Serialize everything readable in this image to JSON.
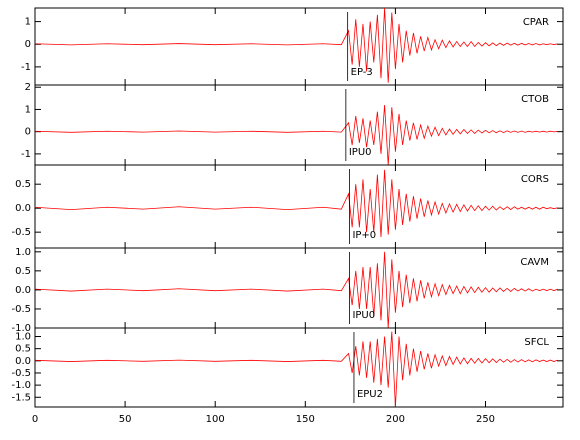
{
  "chart_data": [
    {
      "type": "line",
      "station": "CPAR",
      "pick": {
        "x": 173.5,
        "label": "EP-3"
      },
      "x": [
        0,
        20,
        40,
        60,
        80,
        100,
        120,
        140,
        160,
        170,
        174,
        176,
        178,
        180,
        182,
        184,
        186,
        188,
        190,
        192,
        194,
        196,
        198,
        200,
        202,
        204,
        206,
        208,
        210,
        212,
        214,
        216,
        218,
        220,
        222,
        224,
        226,
        228,
        230,
        232,
        234,
        236,
        238,
        240,
        242,
        244,
        246,
        248,
        250,
        252,
        254,
        256,
        258,
        260,
        262,
        264,
        266,
        268,
        270,
        272,
        274,
        276,
        278,
        280,
        282,
        284,
        286,
        288,
        290
      ],
      "series": [
        {
          "color": "#ff0000",
          "values": [
            0.02,
            -0.03,
            0.02,
            -0.02,
            0.03,
            -0.02,
            0.02,
            -0.03,
            0.02,
            -0.02,
            0.6,
            -0.9,
            1.1,
            -1.0,
            0.9,
            -1.2,
            1.0,
            -0.8,
            1.3,
            -1.5,
            1.6,
            -1.7,
            1.4,
            -1.1,
            0.9,
            -0.8,
            0.6,
            -0.5,
            0.5,
            -0.4,
            0.35,
            -0.3,
            0.3,
            -0.25,
            0.2,
            -0.2,
            0.18,
            -0.15,
            0.15,
            -0.12,
            0.12,
            -0.1,
            0.1,
            -0.1,
            0.12,
            -0.1,
            0.08,
            -0.08,
            0.07,
            -0.07,
            0.06,
            -0.06,
            0.05,
            -0.05,
            0.05,
            -0.04,
            0.04,
            -0.04,
            0.04,
            -0.03,
            0.03,
            -0.03,
            0.03,
            -0.03,
            0.02,
            -0.02,
            0.02,
            -0.02,
            0.02
          ]
        }
      ],
      "xlim": [
        0,
        293
      ],
      "xticks": [
        0,
        50,
        100,
        150,
        200,
        250
      ],
      "ylim": [
        -1.8,
        1.6
      ],
      "yticks": [
        -1,
        0,
        1
      ]
    },
    {
      "type": "line",
      "station": "CTOB",
      "pick": {
        "x": 172.5,
        "label": "IPU0"
      },
      "x": [
        0,
        20,
        40,
        60,
        80,
        100,
        120,
        140,
        160,
        170,
        174,
        176,
        178,
        180,
        182,
        184,
        186,
        188,
        190,
        192,
        194,
        196,
        198,
        200,
        202,
        204,
        206,
        208,
        210,
        212,
        214,
        216,
        218,
        220,
        222,
        224,
        226,
        228,
        230,
        232,
        234,
        236,
        238,
        240,
        242,
        244,
        246,
        248,
        250,
        252,
        254,
        256,
        258,
        260,
        262,
        264,
        266,
        268,
        270,
        272,
        274,
        276,
        278,
        280,
        282,
        284,
        286,
        288,
        290
      ],
      "series": [
        {
          "color": "#ff0000",
          "values": [
            0.02,
            -0.03,
            0.02,
            -0.02,
            0.03,
            -0.02,
            0.02,
            -0.03,
            0.02,
            -0.02,
            0.4,
            -0.6,
            0.7,
            -0.5,
            0.6,
            -0.7,
            0.5,
            -0.6,
            0.9,
            -1.0,
            1.2,
            -1.5,
            1.1,
            -0.9,
            0.8,
            -0.6,
            0.5,
            -0.4,
            0.4,
            -0.35,
            0.3,
            -0.3,
            0.25,
            -0.2,
            0.2,
            -0.18,
            0.15,
            -0.15,
            0.12,
            -0.12,
            0.1,
            -0.1,
            0.1,
            -0.08,
            0.08,
            -0.08,
            0.07,
            -0.06,
            0.06,
            -0.05,
            0.05,
            -0.05,
            0.04,
            -0.04,
            0.04,
            -0.03,
            0.03,
            -0.03,
            0.03,
            -0.03,
            0.02,
            -0.02,
            0.02,
            -0.02,
            0.02,
            -0.02,
            0.02,
            -0.01,
            0.01
          ]
        }
      ],
      "xlim": [
        0,
        293
      ],
      "xticks": [
        0,
        50,
        100,
        150,
        200,
        250
      ],
      "ylim": [
        -1.5,
        2.1
      ],
      "yticks": [
        -1,
        0,
        1,
        2
      ]
    },
    {
      "type": "line",
      "station": "CORS",
      "pick": {
        "x": 174.5,
        "label": "IP+0"
      },
      "x": [
        0,
        20,
        40,
        60,
        80,
        100,
        120,
        140,
        160,
        170,
        174,
        176,
        178,
        180,
        182,
        184,
        186,
        188,
        190,
        192,
        194,
        196,
        198,
        200,
        202,
        204,
        206,
        208,
        210,
        212,
        214,
        216,
        218,
        220,
        222,
        224,
        226,
        228,
        230,
        232,
        234,
        236,
        238,
        240,
        242,
        244,
        246,
        248,
        250,
        252,
        254,
        256,
        258,
        260,
        262,
        264,
        266,
        268,
        270,
        272,
        274,
        276,
        278,
        280,
        282,
        284,
        286,
        288,
        290
      ],
      "series": [
        {
          "color": "#ff0000",
          "values": [
            0.02,
            -0.03,
            0.02,
            -0.02,
            0.03,
            -0.02,
            0.02,
            -0.03,
            0.02,
            -0.02,
            0.3,
            -0.4,
            0.5,
            -0.4,
            0.6,
            -0.5,
            0.4,
            -0.5,
            0.7,
            -0.6,
            0.8,
            -0.55,
            0.6,
            -0.45,
            0.4,
            -0.35,
            0.3,
            -0.28,
            0.25,
            -0.22,
            0.2,
            -0.18,
            0.16,
            -0.14,
            0.13,
            -0.12,
            0.1,
            -0.1,
            0.09,
            -0.08,
            0.08,
            -0.07,
            0.07,
            -0.06,
            0.06,
            -0.05,
            0.05,
            -0.05,
            0.04,
            -0.04,
            0.04,
            -0.04,
            0.03,
            -0.03,
            0.03,
            -0.03,
            0.03,
            -0.02,
            0.02,
            -0.02,
            0.02,
            -0.02,
            0.02,
            -0.02,
            0.02,
            -0.01,
            0.01,
            -0.01,
            0.01
          ]
        }
      ],
      "xlim": [
        0,
        293
      ],
      "xticks": [
        0,
        50,
        100,
        150,
        200,
        250
      ],
      "ylim": [
        -0.83,
        0.9
      ],
      "yticks": [
        -0.5,
        {
          "value": 0,
          "label": "0.0"
        },
        0.5
      ]
    },
    {
      "type": "line",
      "station": "CAVM",
      "pick": {
        "x": 174.5,
        "label": "IPU0"
      },
      "x": [
        0,
        20,
        40,
        60,
        80,
        100,
        120,
        140,
        160,
        170,
        174,
        176,
        178,
        180,
        182,
        184,
        186,
        188,
        190,
        192,
        194,
        196,
        198,
        200,
        202,
        204,
        206,
        208,
        210,
        212,
        214,
        216,
        218,
        220,
        222,
        224,
        226,
        228,
        230,
        232,
        234,
        236,
        238,
        240,
        242,
        244,
        246,
        248,
        250,
        252,
        254,
        256,
        258,
        260,
        262,
        264,
        266,
        268,
        270,
        272,
        274,
        276,
        278,
        280,
        282,
        284,
        286,
        288,
        290
      ],
      "series": [
        {
          "color": "#ff0000",
          "values": [
            0.02,
            -0.03,
            0.02,
            -0.02,
            0.03,
            -0.02,
            0.02,
            -0.03,
            0.02,
            -0.02,
            0.3,
            -0.4,
            0.5,
            -0.5,
            0.6,
            -0.5,
            0.6,
            -0.7,
            0.7,
            -0.8,
            1.0,
            -1.0,
            0.8,
            -0.6,
            0.5,
            -0.45,
            0.4,
            -0.35,
            0.3,
            -0.3,
            0.25,
            -0.22,
            0.2,
            -0.18,
            0.16,
            -0.15,
            0.14,
            -0.12,
            0.12,
            -0.1,
            0.1,
            -0.1,
            0.09,
            -0.08,
            0.08,
            -0.07,
            0.07,
            -0.06,
            0.06,
            -0.06,
            0.05,
            -0.05,
            0.05,
            -0.04,
            0.04,
            -0.04,
            0.04,
            -0.03,
            0.03,
            -0.03,
            0.03,
            -0.03,
            0.02,
            -0.02,
            0.02,
            -0.02,
            0.02,
            -0.02,
            0.02
          ]
        }
      ],
      "xlim": [
        0,
        293
      ],
      "xticks": [
        0,
        50,
        100,
        150,
        200,
        250
      ],
      "ylim": [
        -1.0,
        1.1
      ],
      "yticks": [
        {
          "value": -1,
          "label": "-1.0"
        },
        -0.5,
        {
          "value": 0,
          "label": "0.0"
        },
        0.5,
        {
          "value": 1,
          "label": "1.0"
        }
      ]
    },
    {
      "type": "line",
      "station": "SFCL",
      "pick": {
        "x": 177,
        "label": "EPU2"
      },
      "x": [
        0,
        20,
        40,
        60,
        80,
        100,
        120,
        140,
        160,
        170,
        174,
        176,
        178,
        180,
        182,
        184,
        186,
        188,
        190,
        192,
        194,
        196,
        198,
        200,
        202,
        204,
        206,
        208,
        210,
        212,
        214,
        216,
        218,
        220,
        222,
        224,
        226,
        228,
        230,
        232,
        234,
        236,
        238,
        240,
        242,
        244,
        246,
        248,
        250,
        252,
        254,
        256,
        258,
        260,
        262,
        264,
        266,
        268,
        270,
        272,
        274,
        276,
        278,
        280,
        282,
        284,
        286,
        288,
        290
      ],
      "series": [
        {
          "color": "#ff0000",
          "values": [
            0.02,
            -0.03,
            0.02,
            -0.02,
            0.03,
            -0.02,
            0.02,
            -0.03,
            0.02,
            -0.02,
            0.3,
            -0.5,
            0.6,
            -0.6,
            0.8,
            -0.7,
            0.8,
            -0.9,
            0.9,
            -1.0,
            1.0,
            -1.1,
            1.2,
            -1.9,
            1.0,
            -0.8,
            0.7,
            -0.6,
            0.5,
            -0.45,
            0.4,
            -0.35,
            0.3,
            -0.3,
            0.25,
            -0.22,
            0.2,
            -0.2,
            0.18,
            -0.15,
            0.15,
            -0.13,
            0.12,
            -0.12,
            0.1,
            -0.1,
            0.1,
            -0.09,
            0.09,
            -0.08,
            0.08,
            -0.07,
            0.07,
            -0.06,
            0.06,
            -0.06,
            0.05,
            -0.05,
            0.05,
            -0.04,
            0.04,
            -0.04,
            0.04,
            -0.03,
            0.03,
            -0.03,
            0.03,
            -0.03,
            0.03
          ]
        }
      ],
      "xlim": [
        0,
        293
      ],
      "xticks": [
        0,
        50,
        100,
        150,
        200,
        250
      ],
      "ylim": [
        -1.9,
        1.35
      ],
      "yticks": [
        -1.5,
        {
          "value": -1,
          "label": "-1.0"
        },
        -0.5,
        {
          "value": 0,
          "label": "0.0"
        },
        0.5,
        {
          "value": 1,
          "label": "1.0"
        }
      ]
    }
  ]
}
